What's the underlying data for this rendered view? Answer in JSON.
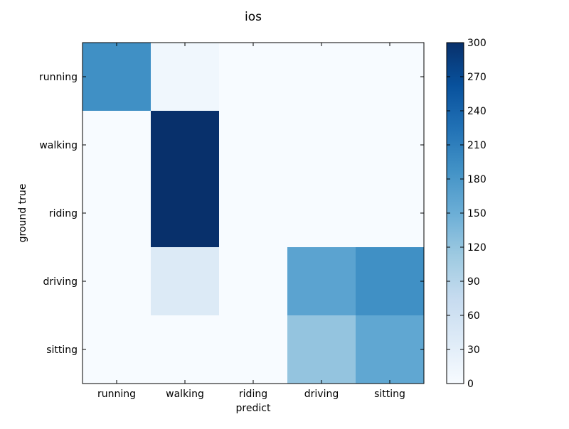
{
  "chart_data": {
    "type": "heatmap",
    "title": "ios",
    "xlabel": "predict",
    "ylabel": "ground true",
    "x_categories": [
      "running",
      "walking",
      "riding",
      "driving",
      "sitting"
    ],
    "y_categories": [
      "running",
      "walking",
      "riding",
      "driving",
      "sitting"
    ],
    "values": [
      [
        190,
        10,
        0,
        0,
        0
      ],
      [
        0,
        300,
        0,
        0,
        0
      ],
      [
        0,
        300,
        0,
        0,
        0
      ],
      [
        0,
        40,
        0,
        165,
        190
      ],
      [
        0,
        0,
        0,
        120,
        160
      ]
    ],
    "colorbar": {
      "min": 0,
      "max": 300,
      "ticks": [
        0,
        30,
        60,
        90,
        120,
        150,
        180,
        210,
        240,
        270,
        300
      ]
    },
    "colormap": "Blues",
    "grid": false
  }
}
